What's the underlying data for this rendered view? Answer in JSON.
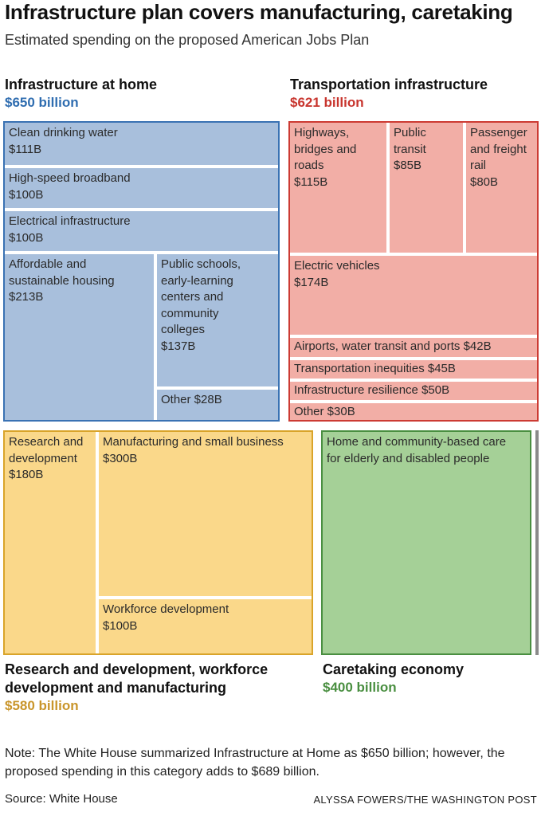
{
  "title": "Infrastructure plan covers manufacturing, caretaking",
  "subtitle": "Estimated spending on the proposed American Jobs Plan",
  "colors": {
    "home_fill": "#a8bfdc",
    "home_border": "#3a72b3",
    "home_text": "#2f6db0",
    "transport_fill": "#f2aea6",
    "transport_border": "#cc3b33",
    "transport_text": "#c8352e",
    "rd_fill": "#fad88a",
    "rd_border": "#d9a42a",
    "rd_text": "#c9952a",
    "care_fill": "#a5d097",
    "care_border": "#4a8f41",
    "care_text": "#4a8f41"
  },
  "chart_data": {
    "type": "treemap",
    "units": "billion USD",
    "groups": [
      {
        "id": "home",
        "name": "Infrastructure at home",
        "total_label": "$650 billion",
        "total": 650,
        "items": [
          {
            "name": "Clean drinking water",
            "value_label": "$111B",
            "value": 111
          },
          {
            "name": "High-speed broadband",
            "value_label": "$100B",
            "value": 100
          },
          {
            "name": "Electrical infrastructure",
            "value_label": "$100B",
            "value": 100
          },
          {
            "name": "Affordable and\nsustainable housing",
            "value_label": "$213B",
            "value": 213
          },
          {
            "name": "Public schools,\nearly-learning\ncenters and\ncommunity\ncolleges",
            "value_label": "$137B",
            "value": 137
          },
          {
            "name": "Other $28B",
            "value_label": "",
            "value": 28
          }
        ]
      },
      {
        "id": "transport",
        "name": "Transportation infrastructure",
        "total_label": "$621 billion",
        "total": 621,
        "items": [
          {
            "name": "Highways,\nbridges and\nroads",
            "value_label": "$115B",
            "value": 115
          },
          {
            "name": "Public\ntransit",
            "value_label": "$85B",
            "value": 85
          },
          {
            "name": "Passenger\nand freight\nrail",
            "value_label": "$80B",
            "value": 80
          },
          {
            "name": "Electric vehicles",
            "value_label": "$174B",
            "value": 174
          },
          {
            "name": "Airports, water transit and ports $42B",
            "value_label": "",
            "value": 42
          },
          {
            "name": "Transportation inequities $45B",
            "value_label": "",
            "value": 45
          },
          {
            "name": "Infrastructure resilience $50B",
            "value_label": "",
            "value": 50
          },
          {
            "name": "Other $30B",
            "value_label": "",
            "value": 30
          }
        ]
      },
      {
        "id": "rd",
        "name": "Research and development, workforce\ndevelopment and manufacturing",
        "total_label": "$580 billion",
        "total": 580,
        "items": [
          {
            "name": "Research and\ndevelopment",
            "value_label": "$180B",
            "value": 180
          },
          {
            "name": "Manufacturing and small business",
            "value_label": "$300B",
            "value": 300
          },
          {
            "name": "Workforce development",
            "value_label": "$100B",
            "value": 100
          }
        ]
      },
      {
        "id": "care",
        "name": "Caretaking economy",
        "total_label": "$400 billion",
        "total": 400,
        "items": [
          {
            "name": "Home and community-based care\nfor elderly and disabled people",
            "value_label": "",
            "value": 400
          }
        ]
      }
    ]
  },
  "note": "Note: The White House summarized Infrastructure at Home as $650 billion; however, the proposed spending in this category adds to $689 billion.",
  "source": "Source: White House",
  "credit": "ALYSSA FOWERS/THE WASHINGTON POST"
}
